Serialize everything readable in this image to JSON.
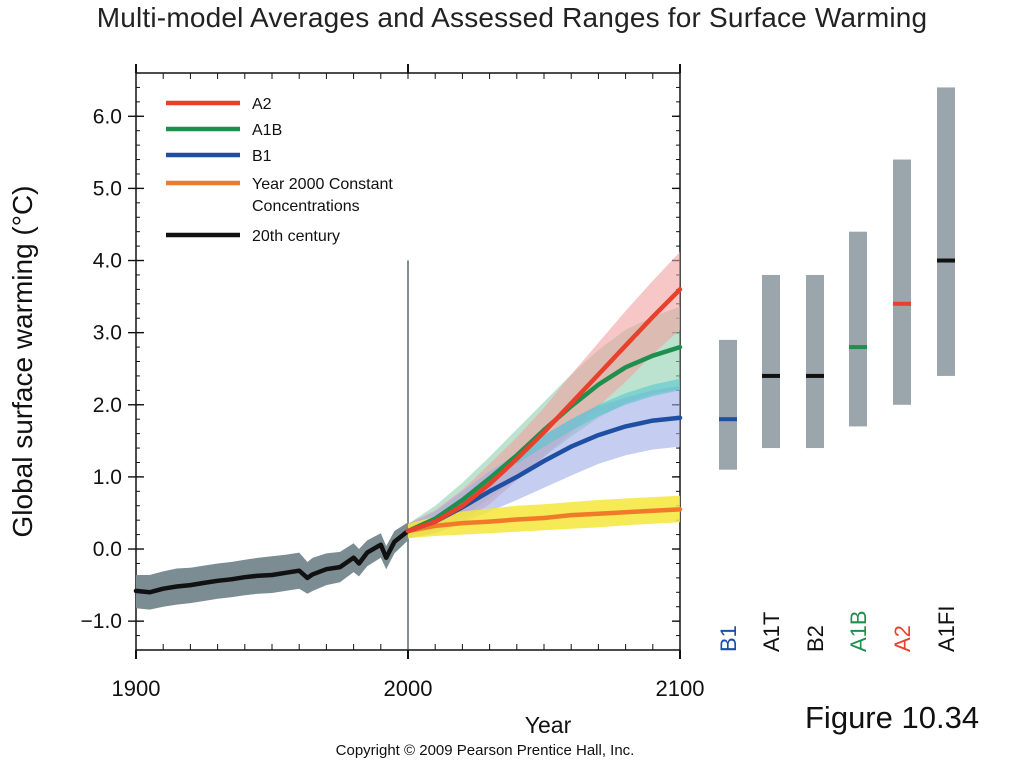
{
  "page": {
    "title": "Multi-model Averages and Assessed Ranges for Surface Warming",
    "figure_label": "Figure  10.34",
    "copyright": "Copyright © 2009 Pearson Prentice Hall, Inc."
  },
  "colors": {
    "A2": "#e8402a",
    "A1B": "#1f8f4e",
    "B1": "#1f4fa3",
    "constant": "#f07a2a",
    "twentieth": "#111111",
    "A2_band": "#f2a0a0",
    "A1B_band": "#8fd1b0",
    "B1_band": "#9eaee6",
    "constant_band": "#f5e63a",
    "teal_band": "#56c6cc",
    "hist_band": "#7b8c93",
    "range_bar": "#9aa6ab"
  },
  "chart_data": [
    {
      "type": "line",
      "title": "Multi-model Averages and Assessed Ranges for Surface Warming",
      "xlabel": "Year",
      "ylabel": "Global surface warming (°C)",
      "xlim": [
        1900,
        2100
      ],
      "ylim": [
        -1.4,
        6.6
      ],
      "x_ticks": [
        1900,
        2000,
        2100
      ],
      "y_ticks": [
        -1.0,
        0.0,
        1.0,
        2.0,
        3.0,
        4.0,
        5.0,
        6.0
      ],
      "y_tick_labels": [
        "−1.0",
        "0.0",
        "1.0",
        "2.0",
        "3.0",
        "4.0",
        "5.0",
        "6.0"
      ],
      "legend_position": "top-left",
      "legend": [
        {
          "key": "A2",
          "label": "A2"
        },
        {
          "key": "A1B",
          "label": "A1B"
        },
        {
          "key": "B1",
          "label": "B1"
        },
        {
          "key": "constant",
          "label": "Year 2000 Constant Concentrations"
        },
        {
          "key": "twentieth",
          "label": "20th century"
        }
      ],
      "vertical_marker_x": 2000,
      "series": [
        {
          "key": "twentieth",
          "name": "20th century",
          "x": [
            1900,
            1905,
            1910,
            1915,
            1920,
            1925,
            1930,
            1935,
            1940,
            1945,
            1950,
            1955,
            1960,
            1963,
            1965,
            1970,
            1975,
            1980,
            1982,
            1985,
            1990,
            1992,
            1995,
            2000
          ],
          "y": [
            -0.58,
            -0.6,
            -0.55,
            -0.52,
            -0.5,
            -0.47,
            -0.44,
            -0.42,
            -0.39,
            -0.37,
            -0.36,
            -0.33,
            -0.3,
            -0.4,
            -0.35,
            -0.28,
            -0.25,
            -0.12,
            -0.2,
            -0.05,
            0.06,
            -0.12,
            0.1,
            0.25
          ],
          "band_lower": [
            -0.82,
            -0.84,
            -0.8,
            -0.77,
            -0.75,
            -0.72,
            -0.69,
            -0.67,
            -0.64,
            -0.62,
            -0.61,
            -0.58,
            -0.55,
            -0.62,
            -0.58,
            -0.5,
            -0.46,
            -0.32,
            -0.38,
            -0.24,
            -0.12,
            -0.28,
            -0.06,
            0.12
          ],
          "band_upper": [
            -0.36,
            -0.36,
            -0.31,
            -0.27,
            -0.26,
            -0.23,
            -0.2,
            -0.18,
            -0.15,
            -0.12,
            -0.1,
            -0.08,
            -0.05,
            -0.18,
            -0.12,
            -0.06,
            -0.04,
            0.08,
            0.0,
            0.12,
            0.22,
            0.04,
            0.25,
            0.37
          ]
        },
        {
          "key": "constant",
          "name": "Year 2000 Constant Concentrations",
          "x": [
            2000,
            2010,
            2020,
            2030,
            2040,
            2050,
            2060,
            2070,
            2080,
            2090,
            2100
          ],
          "y": [
            0.25,
            0.32,
            0.36,
            0.38,
            0.41,
            0.43,
            0.47,
            0.49,
            0.51,
            0.53,
            0.55
          ],
          "band_lower": [
            0.15,
            0.18,
            0.2,
            0.22,
            0.24,
            0.26,
            0.28,
            0.3,
            0.33,
            0.35,
            0.37
          ],
          "band_upper": [
            0.35,
            0.45,
            0.52,
            0.56,
            0.6,
            0.62,
            0.65,
            0.68,
            0.7,
            0.72,
            0.74
          ]
        },
        {
          "key": "B1",
          "name": "B1",
          "x": [
            2000,
            2010,
            2020,
            2030,
            2040,
            2050,
            2060,
            2070,
            2080,
            2090,
            2100
          ],
          "y": [
            0.25,
            0.38,
            0.58,
            0.8,
            1.0,
            1.22,
            1.42,
            1.58,
            1.7,
            1.78,
            1.82
          ],
          "band_lower": [
            0.15,
            0.22,
            0.36,
            0.52,
            0.68,
            0.85,
            1.02,
            1.18,
            1.3,
            1.38,
            1.42
          ],
          "band_upper": [
            0.35,
            0.52,
            0.8,
            1.08,
            1.32,
            1.58,
            1.8,
            1.98,
            2.1,
            2.2,
            2.26
          ]
        },
        {
          "key": "A1B",
          "name": "A1B",
          "x": [
            2000,
            2010,
            2020,
            2030,
            2040,
            2050,
            2060,
            2070,
            2080,
            2090,
            2100
          ],
          "y": [
            0.25,
            0.42,
            0.68,
            0.98,
            1.3,
            1.65,
            1.98,
            2.28,
            2.52,
            2.68,
            2.8
          ],
          "band_lower": [
            0.15,
            0.25,
            0.45,
            0.7,
            0.98,
            1.28,
            1.56,
            1.82,
            2.02,
            2.15,
            2.22
          ],
          "band_upper": [
            0.35,
            0.6,
            0.92,
            1.28,
            1.66,
            2.04,
            2.42,
            2.76,
            3.04,
            3.22,
            3.36
          ]
        },
        {
          "key": "A2",
          "name": "A2",
          "x": [
            2000,
            2010,
            2020,
            2030,
            2040,
            2050,
            2060,
            2070,
            2080,
            2090,
            2100
          ],
          "y": [
            0.25,
            0.38,
            0.6,
            0.9,
            1.25,
            1.62,
            2.02,
            2.42,
            2.82,
            3.22,
            3.6
          ],
          "band_lower": [
            0.15,
            0.22,
            0.38,
            0.62,
            0.95,
            1.28,
            1.62,
            1.98,
            2.32,
            2.7,
            3.04
          ],
          "band_upper": [
            0.35,
            0.54,
            0.82,
            1.18,
            1.55,
            1.96,
            2.42,
            2.86,
            3.3,
            3.72,
            4.12
          ]
        },
        {
          "key": "teal",
          "name": "",
          "x": [
            2040,
            2050,
            2060,
            2070,
            2080,
            2090,
            2100
          ],
          "y": [
            1.25,
            1.5,
            1.72,
            1.92,
            2.08,
            2.2,
            2.28
          ],
          "band_lower": [
            1.18,
            1.42,
            1.64,
            1.84,
            2.0,
            2.12,
            2.2
          ],
          "band_upper": [
            1.32,
            1.58,
            1.8,
            2.0,
            2.16,
            2.28,
            2.36
          ]
        }
      ]
    },
    {
      "type": "range",
      "title": "",
      "ylim": [
        -1.4,
        6.6
      ],
      "categories": [
        "B1",
        "A1T",
        "B2",
        "A1B",
        "A2",
        "A1FI"
      ],
      "category_label_colors": [
        "#1f4fa3",
        "#111111",
        "#111111",
        "#1f8f4e",
        "#e8402a",
        "#111111"
      ],
      "low": [
        1.1,
        1.4,
        1.4,
        1.7,
        2.0,
        2.4
      ],
      "high": [
        2.9,
        3.8,
        3.8,
        4.4,
        5.4,
        6.4
      ],
      "best": [
        1.8,
        2.4,
        2.4,
        2.8,
        3.4,
        4.0
      ],
      "best_colors": [
        "#1f4fa3",
        "#111111",
        "#111111",
        "#1f8f4e",
        "#e8402a",
        "#111111"
      ]
    }
  ]
}
